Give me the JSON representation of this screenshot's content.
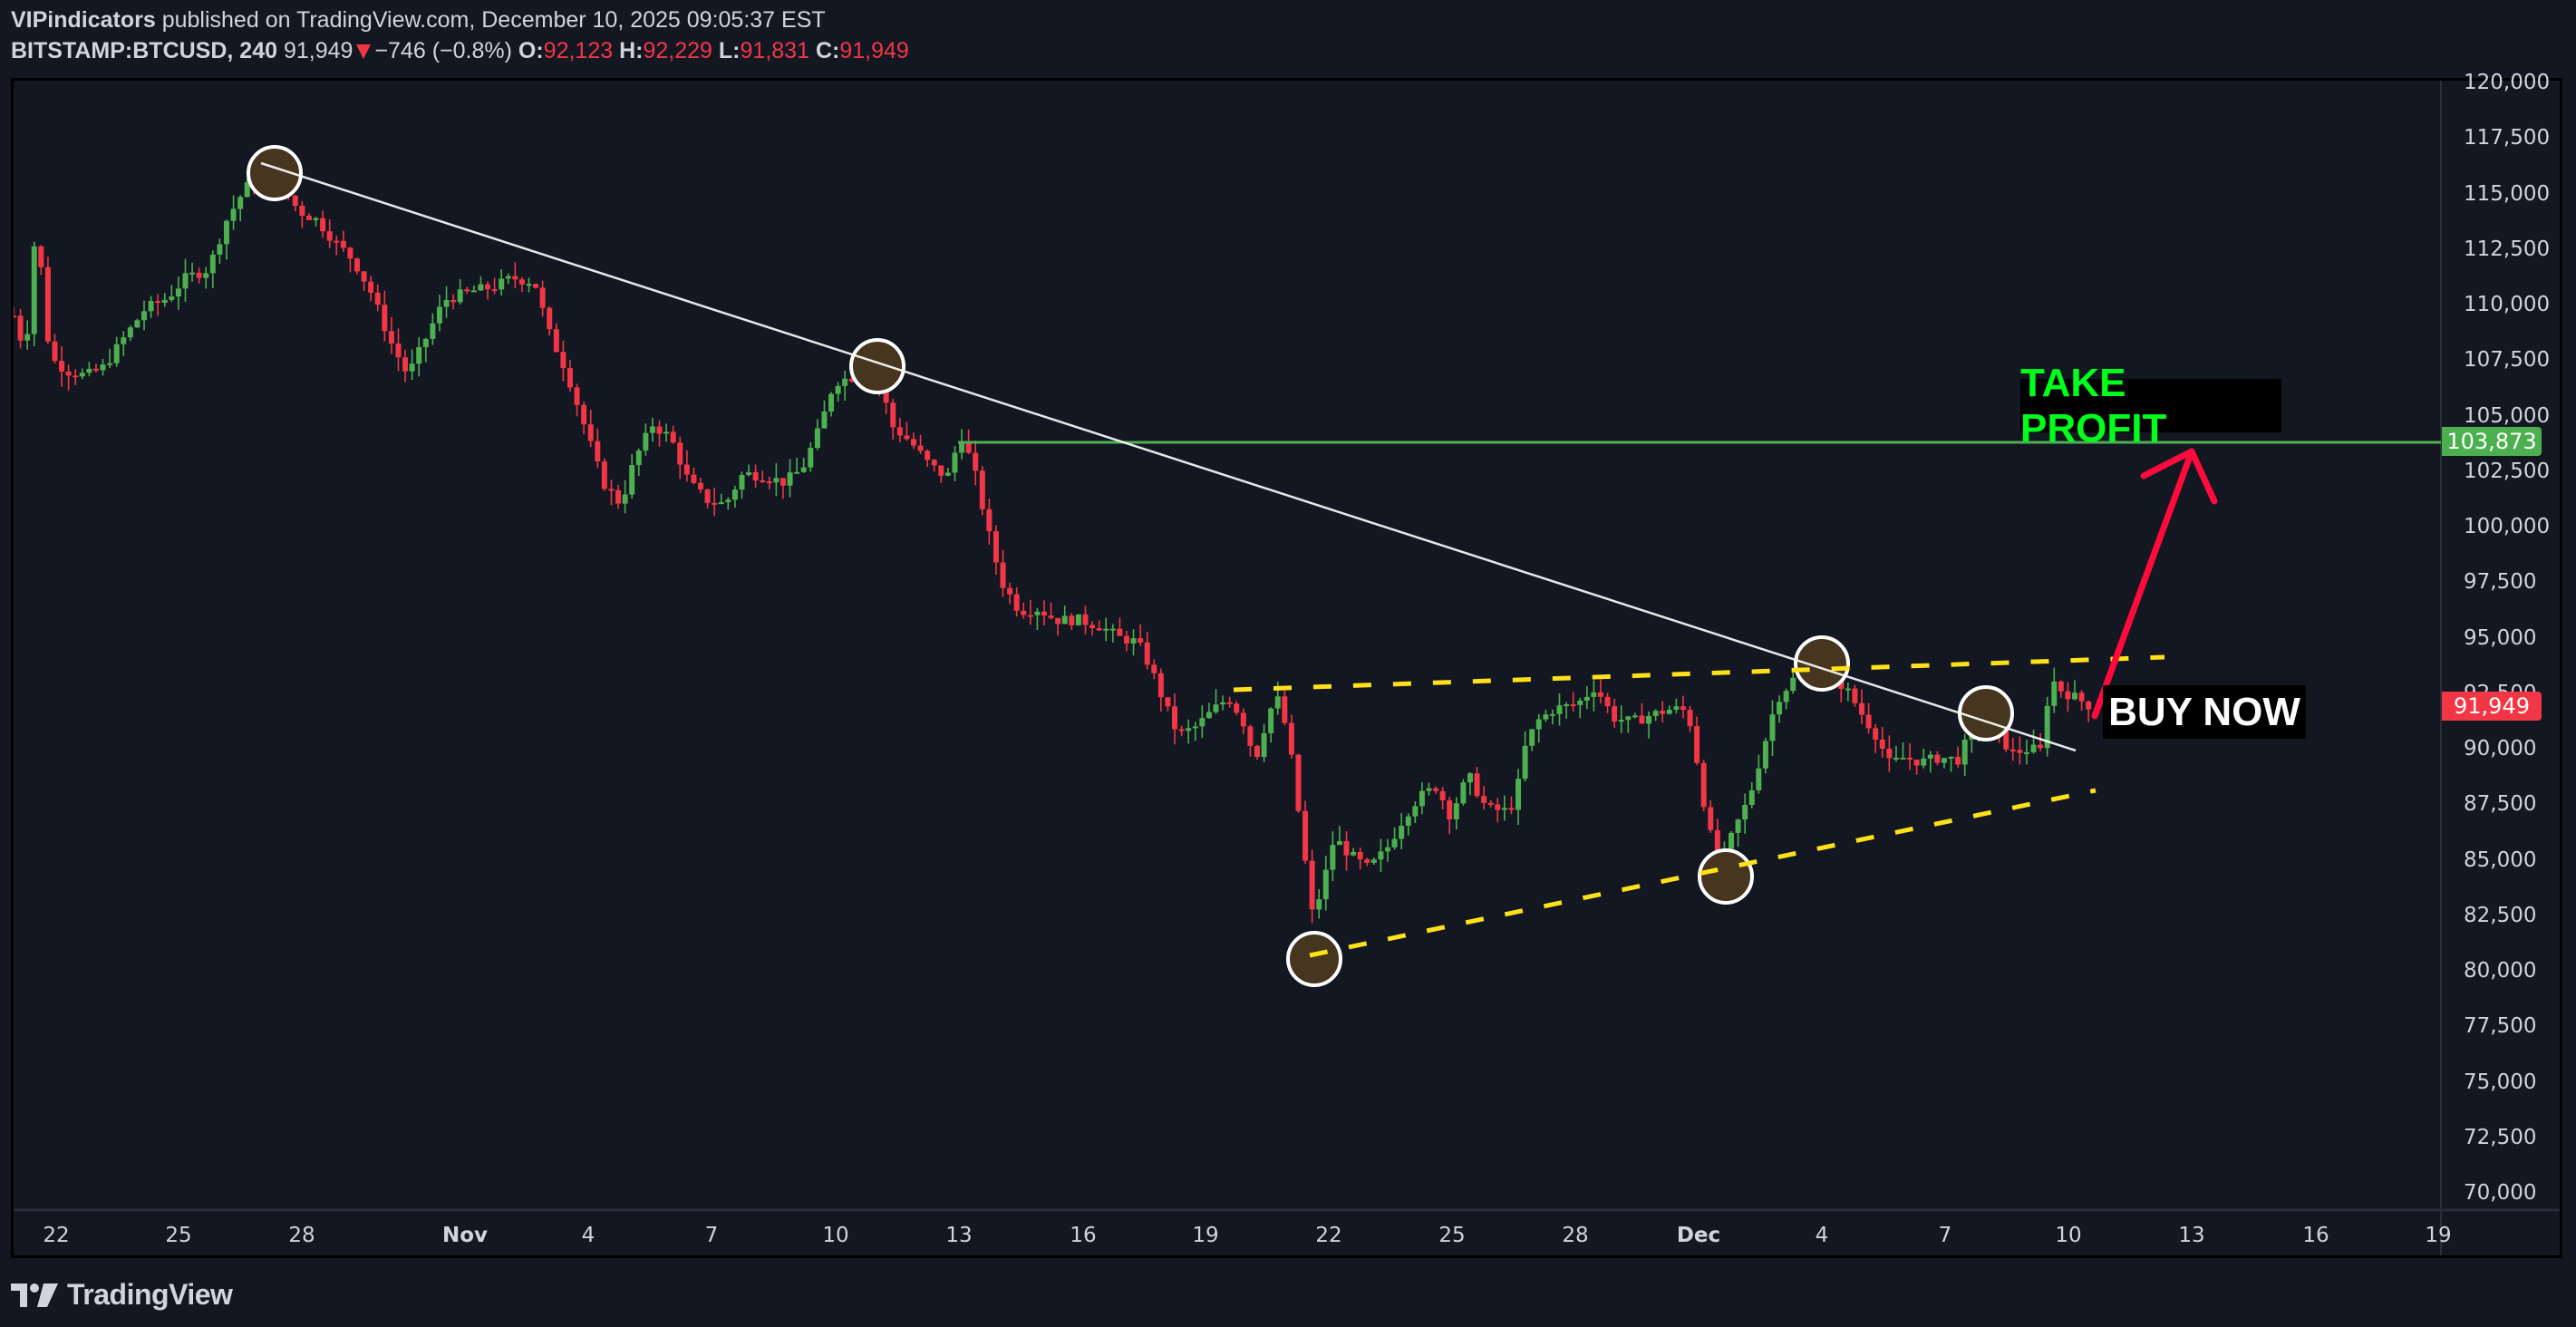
{
  "header": {
    "author": "VIPindicators",
    "published_text": " published on TradingView.com, December 10, 2025 09:05:37 EST",
    "symbol": "BITSTAMP:BTCUSD, 240",
    "last": "91,949",
    "change": "−746 (−0.8%)",
    "o_label": "O:",
    "o": "92,123",
    "h_label": "H:",
    "h": "92,229",
    "l_label": "L:",
    "l": "91,831",
    "c_label": "C:",
    "c": "91,949"
  },
  "annotations": {
    "take_profit": "TAKE PROFIT",
    "buy_now": "BUY NOW",
    "take_profit_price": "103,873",
    "last_price": "91,949"
  },
  "colors": {
    "background": "#131722",
    "up": "#4caf50",
    "down": "#f23645",
    "take_profit_line": "#4caf50",
    "take_profit_text": "#00ff1a",
    "trendline": "#ffffff",
    "channel": "#ffe119",
    "arrow": "#ff0a3c",
    "circle_fill": "#46351f"
  },
  "footer": {
    "brand": "TradingView"
  },
  "chart_data": {
    "type": "candlestick",
    "title": "BITSTAMP:BTCUSD, 240",
    "xlabel": "",
    "ylabel": "",
    "ylim": [
      70000,
      120000
    ],
    "y_ticks": [
      "120,000",
      "117,500",
      "115,000",
      "112,500",
      "110,000",
      "107,500",
      "105,000",
      "102,500",
      "100,000",
      "97,500",
      "95,000",
      "92,500",
      "90,000",
      "87,500",
      "85,000",
      "82,500",
      "80,000",
      "77,500",
      "75,000",
      "72,500",
      "70,000"
    ],
    "x_ticks": [
      {
        "label": "22",
        "x": 62
      },
      {
        "label": "25",
        "x": 197
      },
      {
        "label": "28",
        "x": 333
      },
      {
        "label": "Nov",
        "x": 513,
        "bold": true
      },
      {
        "label": "4",
        "x": 649
      },
      {
        "label": "7",
        "x": 785
      },
      {
        "label": "10",
        "x": 922
      },
      {
        "label": "13",
        "x": 1058
      },
      {
        "label": "16",
        "x": 1195
      },
      {
        "label": "19",
        "x": 1330
      },
      {
        "label": "22",
        "x": 1466
      },
      {
        "label": "25",
        "x": 1602
      },
      {
        "label": "28",
        "x": 1738
      },
      {
        "label": "Dec",
        "x": 1874,
        "bold": true
      },
      {
        "label": "4",
        "x": 2010
      },
      {
        "label": "7",
        "x": 2146
      },
      {
        "label": "10",
        "x": 2282
      },
      {
        "label": "13",
        "x": 2418
      },
      {
        "label": "16",
        "x": 2555
      },
      {
        "label": "19",
        "x": 2690
      }
    ],
    "price_path": [
      [
        15,
        109500
      ],
      [
        28,
        107800
      ],
      [
        40,
        113800
      ],
      [
        55,
        107600
      ],
      [
        75,
        107000
      ],
      [
        95,
        106800
      ],
      [
        115,
        107200
      ],
      [
        135,
        108400
      ],
      [
        160,
        109800
      ],
      [
        185,
        110300
      ],
      [
        205,
        111200
      ],
      [
        230,
        111600
      ],
      [
        250,
        113800
      ],
      [
        270,
        115200
      ],
      [
        290,
        116000
      ],
      [
        310,
        115400
      ],
      [
        330,
        114200
      ],
      [
        350,
        113800
      ],
      [
        370,
        112800
      ],
      [
        390,
        112000
      ],
      [
        410,
        110500
      ],
      [
        430,
        108400
      ],
      [
        450,
        106800
      ],
      [
        470,
        108500
      ],
      [
        490,
        110200
      ],
      [
        520,
        110600
      ],
      [
        545,
        110800
      ],
      [
        565,
        111200
      ],
      [
        590,
        111000
      ],
      [
        605,
        108800
      ],
      [
        625,
        107000
      ],
      [
        645,
        104500
      ],
      [
        665,
        102000
      ],
      [
        685,
        101000
      ],
      [
        700,
        103000
      ],
      [
        720,
        104600
      ],
      [
        740,
        104000
      ],
      [
        760,
        102000
      ],
      [
        780,
        101200
      ],
      [
        800,
        101000
      ],
      [
        820,
        102400
      ],
      [
        840,
        102300
      ],
      [
        865,
        102000
      ],
      [
        885,
        102600
      ],
      [
        905,
        104500
      ],
      [
        920,
        106500
      ],
      [
        945,
        106800
      ],
      [
        965,
        107200
      ],
      [
        985,
        104500
      ],
      [
        1005,
        103800
      ],
      [
        1025,
        102800
      ],
      [
        1045,
        102200
      ],
      [
        1060,
        104200
      ],
      [
        1075,
        102500
      ],
      [
        1090,
        99800
      ],
      [
        1105,
        97500
      ],
      [
        1125,
        96200
      ],
      [
        1145,
        96300
      ],
      [
        1165,
        95800
      ],
      [
        1190,
        95800
      ],
      [
        1215,
        95500
      ],
      [
        1235,
        95000
      ],
      [
        1255,
        94800
      ],
      [
        1270,
        93600
      ],
      [
        1285,
        92000
      ],
      [
        1300,
        90600
      ],
      [
        1320,
        91000
      ],
      [
        1340,
        91800
      ],
      [
        1355,
        92300
      ],
      [
        1370,
        91400
      ],
      [
        1385,
        89500
      ],
      [
        1400,
        91700
      ],
      [
        1412,
        92300
      ],
      [
        1425,
        89500
      ],
      [
        1438,
        85500
      ],
      [
        1448,
        82500
      ],
      [
        1458,
        83600
      ],
      [
        1472,
        86000
      ],
      [
        1490,
        85200
      ],
      [
        1510,
        84600
      ],
      [
        1530,
        85500
      ],
      [
        1550,
        87000
      ],
      [
        1565,
        87800
      ],
      [
        1585,
        88300
      ],
      [
        1600,
        87000
      ],
      [
        1620,
        88800
      ],
      [
        1640,
        87300
      ],
      [
        1660,
        87200
      ],
      [
        1672,
        87600
      ],
      [
        1680,
        89800
      ],
      [
        1695,
        91200
      ],
      [
        1715,
        91800
      ],
      [
        1740,
        92000
      ],
      [
        1760,
        92800
      ],
      [
        1780,
        91400
      ],
      [
        1800,
        91200
      ],
      [
        1820,
        91500
      ],
      [
        1845,
        91800
      ],
      [
        1862,
        91700
      ],
      [
        1872,
        89500
      ],
      [
        1885,
        86300
      ],
      [
        1900,
        85000
      ],
      [
        1915,
        86500
      ],
      [
        1930,
        87800
      ],
      [
        1945,
        90000
      ],
      [
        1960,
        92200
      ],
      [
        1980,
        93200
      ],
      [
        2000,
        93700
      ],
      [
        2020,
        93400
      ],
      [
        2040,
        92500
      ],
      [
        2055,
        91500
      ],
      [
        2070,
        90600
      ],
      [
        2085,
        89300
      ],
      [
        2100,
        89600
      ],
      [
        2120,
        89400
      ],
      [
        2140,
        89600
      ],
      [
        2160,
        89500
      ],
      [
        2175,
        90800
      ],
      [
        2190,
        91600
      ],
      [
        2205,
        90600
      ],
      [
        2220,
        89800
      ],
      [
        2240,
        90000
      ],
      [
        2252,
        89900
      ],
      [
        2262,
        93200
      ],
      [
        2275,
        92600
      ],
      [
        2290,
        92300
      ],
      [
        2305,
        91949
      ]
    ],
    "drawings": {
      "take_profit_level": 103873,
      "descending_trendline": [
        [
          288,
          180
        ],
        [
          2290,
          828
        ]
      ],
      "upper_channel": [
        [
          1361,
          761
        ],
        [
          2388,
          725
        ]
      ],
      "lower_channel": [
        [
          1445,
          1054
        ],
        [
          2312,
          872
        ]
      ],
      "circles": [
        [
          303,
          191
        ],
        [
          968,
          404
        ],
        [
          2010,
          732
        ],
        [
          1450,
          1058
        ],
        [
          1904,
          967
        ],
        [
          2191,
          787
        ]
      ],
      "arrow": {
        "from": [
          2311,
          790
        ],
        "to": [
          2418,
          498
        ]
      }
    }
  }
}
